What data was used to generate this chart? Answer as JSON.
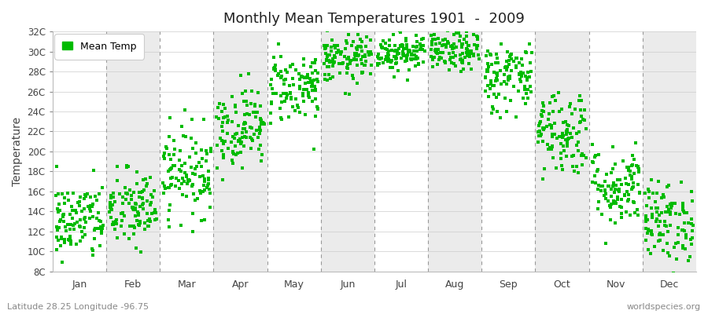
{
  "title": "Monthly Mean Temperatures 1901  -  2009",
  "ylabel": "Temperature",
  "xlabel": "",
  "footer_left": "Latitude 28.25 Longitude -96.75",
  "footer_right": "worldspecies.org",
  "legend_label": "Mean Temp",
  "dot_color": "#00BB00",
  "background_color": "#ffffff",
  "plot_bg_color": "#ffffff",
  "stripe_color": "#ebebeb",
  "ylim": [
    8,
    32
  ],
  "yticks": [
    8,
    10,
    12,
    14,
    16,
    18,
    20,
    22,
    24,
    26,
    28,
    30,
    32
  ],
  "ytick_labels": [
    "8C",
    "10C",
    "12C",
    "14C",
    "16C",
    "18C",
    "20C",
    "22C",
    "24C",
    "26C",
    "28C",
    "30C",
    "32C"
  ],
  "months": [
    "Jan",
    "Feb",
    "Mar",
    "Apr",
    "May",
    "Jun",
    "Jul",
    "Aug",
    "Sep",
    "Oct",
    "Nov",
    "Dec"
  ],
  "monthly_means": [
    13.0,
    14.2,
    18.0,
    22.5,
    26.5,
    29.2,
    30.0,
    30.0,
    27.5,
    22.0,
    16.5,
    13.0
  ],
  "monthly_stds": [
    2.0,
    2.0,
    2.2,
    2.0,
    1.8,
    1.2,
    1.0,
    1.0,
    1.8,
    2.2,
    2.0,
    2.0
  ],
  "n_years": 109,
  "seed": 42,
  "dot_size": 5,
  "dot_marker": "s"
}
